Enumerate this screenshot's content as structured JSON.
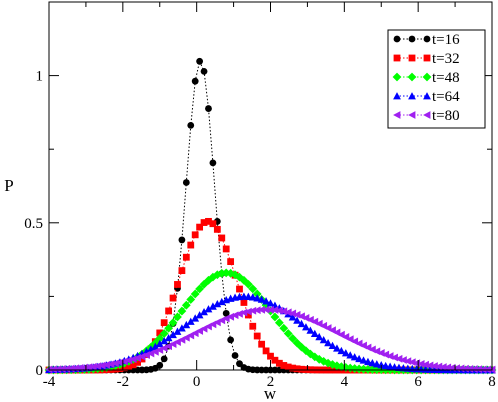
{
  "chart_data": {
    "type": "scatter",
    "title": "",
    "xlabel": "w",
    "ylabel": "P",
    "xlim": [
      -4,
      8
    ],
    "ylim": [
      0,
      1.25
    ],
    "xticks": [
      -4,
      -2,
      0,
      2,
      4,
      6,
      8
    ],
    "xtick_labels": [
      "-4",
      "-2",
      "0",
      "2",
      "4",
      "6",
      "8"
    ],
    "yticks": [
      0,
      0.5,
      1
    ],
    "ytick_labels": [
      "0",
      "0.5",
      "1"
    ],
    "grid": false,
    "legend_position": "top-right",
    "series": [
      {
        "name": "t=16",
        "color": "#000000",
        "marker": "circle",
        "mean": 0.1,
        "sd": 0.38,
        "peak": 1.05
      },
      {
        "name": "t=32",
        "color": "#ff0000",
        "marker": "square",
        "mean": 0.3,
        "sd": 0.78,
        "peak": 0.505
      },
      {
        "name": "t=48",
        "color": "#00ff00",
        "marker": "diamond",
        "mean": 0.8,
        "sd": 1.2,
        "peak": 0.33
      },
      {
        "name": "t=64",
        "color": "#0000ff",
        "marker": "triangle-up",
        "mean": 1.3,
        "sd": 1.6,
        "peak": 0.25
      },
      {
        "name": "t=80",
        "color": "#a020f0",
        "marker": "triangle-left",
        "mean": 1.9,
        "sd": 1.95,
        "peak": 0.205
      }
    ]
  }
}
